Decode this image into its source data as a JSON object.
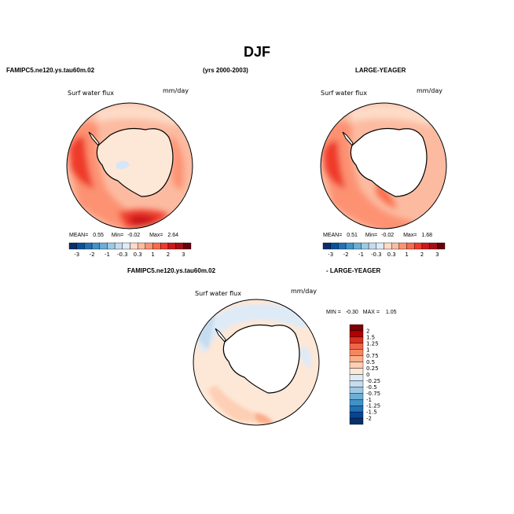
{
  "chart_data": [
    {
      "type": "heatmap",
      "projection": "south-polar-stereographic",
      "title": "DJF",
      "case_name": "FAMIPC5.ne120.ys.tau60m.02",
      "years": "(yrs 2000-2003)",
      "variable": "Surf water flux",
      "units": "mm/day",
      "stats": {
        "mean_label": "MEAN=",
        "mean": "0.55",
        "min_label": "Min=",
        "min": "-0.02",
        "max_label": "Max=",
        "max": "2.64"
      },
      "colorbar_levels": [
        "-3",
        "-2",
        "-1",
        "-0.3",
        "0.3",
        "1",
        "2",
        "3"
      ],
      "field_note": "Ocean values mostly 0.3-1 mm/day; highest (2-3) near the Antarctic Peninsula and Ross Sea sector; Antarctica mostly -0.3 to 0.3."
    },
    {
      "type": "heatmap",
      "projection": "south-polar-stereographic",
      "case_name": "LARGE-YEAGER",
      "variable": "Surf water flux",
      "units": "mm/day",
      "stats": {
        "mean_label": "MEAN=",
        "mean": "0.51",
        "min_label": "Min=",
        "min": "-0.02",
        "max_label": "Max=",
        "max": "1.68"
      },
      "colorbar_levels": [
        "-3",
        "-2",
        "-1",
        "-0.3",
        "0.3",
        "1",
        "2",
        "3"
      ],
      "field_note": "Ocean values 0.3-2 mm/day, continent left blank (no data)."
    },
    {
      "type": "heatmap",
      "projection": "south-polar-stereographic",
      "case_name": "FAMIPC5.ne120.ys.tau60m.02",
      "minus_label": "- LARGE-YEAGER",
      "variable": "Surf water flux",
      "units": "mm/day",
      "stats": {
        "min_label": "MIN =",
        "min": "-0.30",
        "max_label": "MAX =",
        "max": "1.05"
      },
      "colorbar_levels": [
        "2",
        "1.5",
        "1.25",
        "1",
        "0.75",
        "0.5",
        "0.25",
        "0",
        "-0.25",
        "-0.5",
        "-0.75",
        "-1",
        "-1.25",
        "-1.5",
        "-2"
      ],
      "field_note": "Difference mostly 0 to 0.5 mm/day, small negative patches near the sea-ice edge."
    }
  ],
  "colors": {
    "pos": [
      "#fddbc7",
      "#fcbba1",
      "#fc9272",
      "#fb6a4a",
      "#ef3b2c",
      "#cb181d",
      "#a50f15",
      "#67000d"
    ],
    "neg": [
      "#deebf7",
      "#c6dbef",
      "#9ecae1",
      "#6baed6",
      "#4292c6",
      "#2171b5",
      "#08519c",
      "#08306b"
    ],
    "diffbar": [
      "#7f0000",
      "#b30000",
      "#d7301f",
      "#ef6548",
      "#f4875f",
      "#fbae8a",
      "#fdd0b5",
      "#fde7d7",
      "#deebf7",
      "#c6dbef",
      "#9ecae1",
      "#6baed6",
      "#4292c6",
      "#2171b5",
      "#084594",
      "#08306b"
    ],
    "ice": "#d4e6f7"
  }
}
